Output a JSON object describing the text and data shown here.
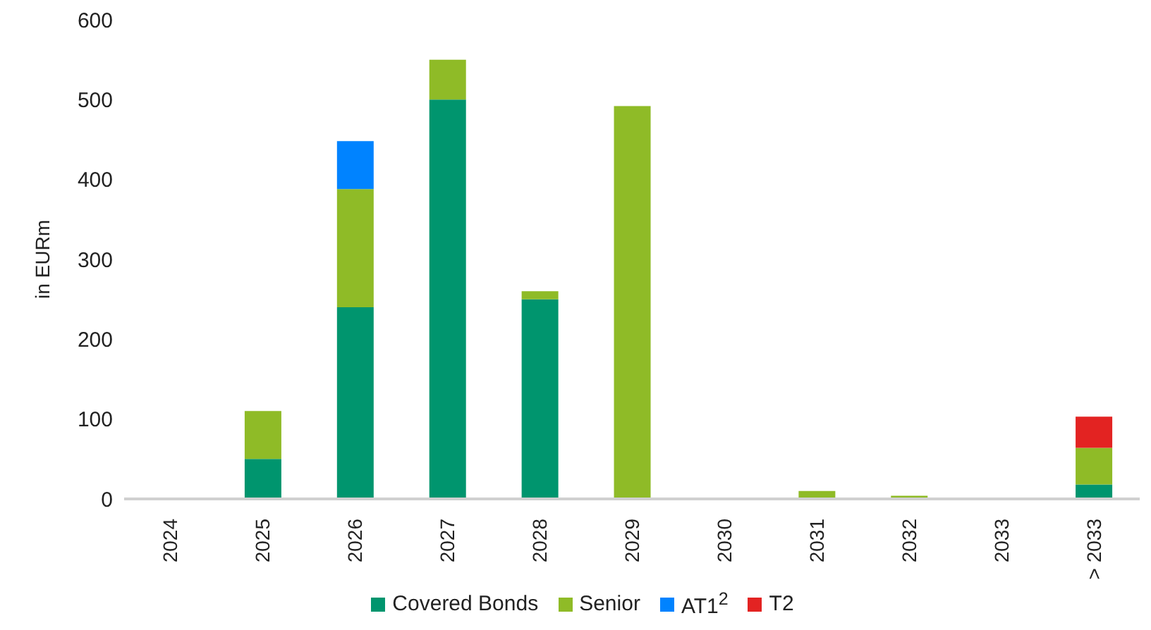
{
  "chart_data": {
    "type": "bar",
    "ylabel": "in EURm",
    "stacked": true,
    "legend": "bottom",
    "grid": false,
    "categories": [
      "2024",
      "2025",
      "2026",
      "2027",
      "2028",
      "2029",
      "2030",
      "2031",
      "2032",
      "2033",
      "> 2033"
    ],
    "series": [
      {
        "name": "Covered Bonds",
        "color": "#00956e",
        "values": [
          0,
          50,
          240,
          500,
          250,
          0,
          0,
          0,
          0,
          0,
          18
        ]
      },
      {
        "name": "Senior",
        "color": "#8fbb27",
        "values": [
          0,
          60,
          148,
          50,
          10,
          492,
          0,
          10,
          4,
          0,
          46
        ]
      },
      {
        "name": "AT1$^{2}$",
        "color": "#0083ff",
        "values": [
          0,
          0,
          60,
          0,
          0,
          0,
          0,
          0,
          0,
          0,
          0
        ]
      },
      {
        "name": "T2",
        "color": "#e32322",
        "values": [
          0,
          0,
          0,
          0,
          0,
          0,
          0,
          0,
          0,
          0,
          39
        ]
      }
    ],
    "ylim": [
      0,
      600
    ],
    "yticks": [
      0,
      100,
      200,
      300,
      400,
      500,
      600
    ]
  }
}
